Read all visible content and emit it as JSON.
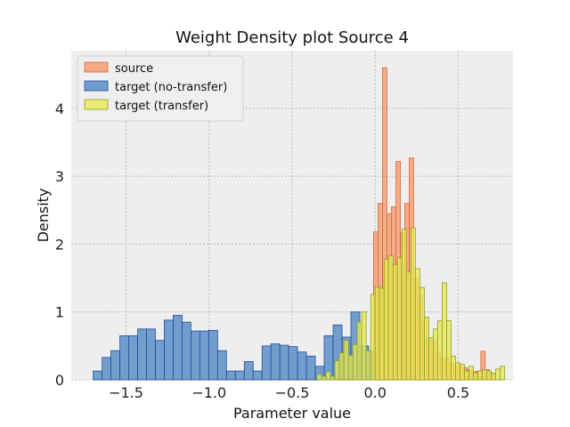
{
  "chart_data": {
    "type": "bar",
    "title": "Weight Density plot Source 4",
    "xlabel": "Parameter value",
    "ylabel": "Density",
    "xlim": [
      -1.83,
      0.83
    ],
    "ylim": [
      0,
      4.85
    ],
    "grid": true,
    "legend_position": "top-left",
    "xticks": [
      -1.5,
      -1.0,
      -0.5,
      0.0,
      0.5
    ],
    "xtick_labels": [
      "−1.5",
      "−1.0",
      "−0.5",
      "0.0",
      "0.5"
    ],
    "yticks": [
      0,
      1,
      2,
      3,
      4
    ],
    "ytick_labels": [
      "0",
      "1",
      "2",
      "3",
      "4"
    ],
    "series": [
      {
        "name": "target (no-transfer)",
        "color": "#4f87c4",
        "edge": "#2050a0",
        "bin_width": 0.0535,
        "x": [
          -1.698,
          -1.644,
          -1.591,
          -1.537,
          -1.484,
          -1.43,
          -1.377,
          -1.323,
          -1.27,
          -1.216,
          -1.163,
          -1.109,
          -1.056,
          -1.002,
          -0.949,
          -0.895,
          -0.842,
          -0.788,
          -0.735,
          -0.681,
          -0.628,
          -0.574,
          -0.521,
          -0.467,
          -0.414,
          -0.36,
          -0.307,
          -0.253,
          -0.2,
          -0.146,
          -0.093,
          -0.039
        ],
        "values": [
          0.13,
          0.33,
          0.43,
          0.65,
          0.65,
          0.75,
          0.75,
          0.58,
          0.88,
          0.95,
          0.85,
          0.72,
          0.72,
          0.73,
          0.43,
          0.13,
          0.13,
          0.27,
          0.13,
          0.5,
          0.53,
          0.51,
          0.49,
          0.41,
          0.35,
          0.2,
          0.65,
          0.81,
          0.63,
          1.0,
          0.5,
          0.42
        ]
      },
      {
        "name": "source",
        "color": "#f59a6a",
        "edge": "#d86a3a",
        "bin_width": 0.0268,
        "x": [
          -0.01,
          0.017,
          0.044,
          0.071,
          0.098,
          0.125,
          0.152,
          0.178,
          0.205,
          0.232,
          0.259,
          0.286,
          0.313,
          0.34,
          0.366,
          0.393,
          0.42,
          0.447,
          0.474,
          0.501,
          0.528,
          0.555,
          0.582,
          0.609,
          0.636,
          0.663,
          0.689
        ],
        "values": [
          2.18,
          2.6,
          4.6,
          2.45,
          2.55,
          3.22,
          2.17,
          2.6,
          3.27,
          1.49,
          1.25,
          0.86,
          0.6,
          0.58,
          0.4,
          0.3,
          0.32,
          0.25,
          0.2,
          0.2,
          0.18,
          0.15,
          0.12,
          0.13,
          0.42,
          0.15,
          0.1
        ]
      },
      {
        "name": "target (transfer)",
        "color": "#e8e855",
        "edge": "#90a020",
        "bin_width": 0.0268,
        "x": [
          -0.35,
          -0.323,
          -0.296,
          -0.269,
          -0.242,
          -0.215,
          -0.188,
          -0.161,
          -0.134,
          -0.108,
          -0.081,
          -0.054,
          -0.027,
          0.0,
          0.027,
          0.054,
          0.081,
          0.108,
          0.134,
          0.161,
          0.188,
          0.215,
          0.242,
          0.269,
          0.296,
          0.323,
          0.35,
          0.376,
          0.403,
          0.43,
          0.457,
          0.484,
          0.511,
          0.538,
          0.565,
          0.592,
          0.619,
          0.646,
          0.672,
          0.699,
          0.726,
          0.753
        ],
        "values": [
          0.08,
          0.05,
          0.12,
          0.05,
          0.28,
          0.4,
          0.58,
          0.36,
          0.52,
          0.85,
          1.0,
          0.43,
          1.26,
          1.37,
          1.35,
          1.78,
          1.83,
          1.7,
          1.8,
          2.22,
          1.59,
          2.24,
          1.64,
          1.36,
          0.92,
          0.62,
          0.75,
          0.87,
          1.43,
          0.87,
          0.35,
          0.25,
          0.23,
          0.13,
          0.2,
          0.1,
          0.13,
          0.15,
          0.13,
          0.1,
          0.16,
          0.2
        ]
      }
    ],
    "legend_order": [
      "source",
      "target (no-transfer)",
      "target (transfer)"
    ]
  }
}
